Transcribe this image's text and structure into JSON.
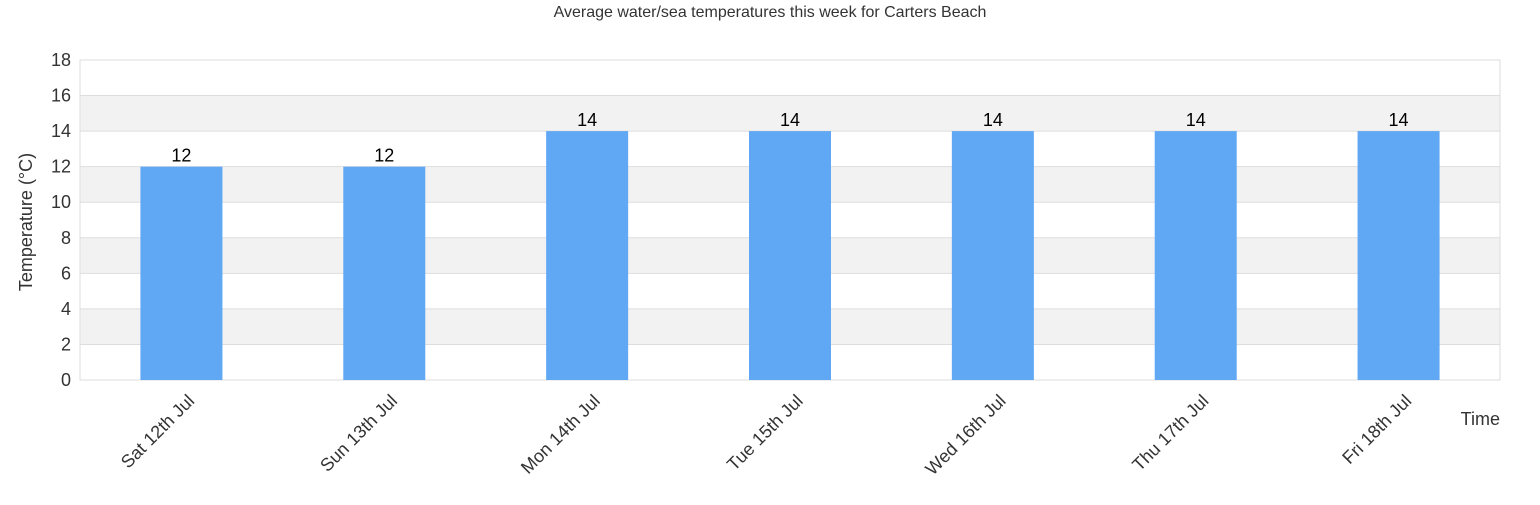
{
  "chart_data": {
    "type": "bar",
    "title": "Average water/sea temperatures this week for Carters Beach",
    "xlabel": "Time",
    "ylabel": "Temperature (°C)",
    "categories": [
      "Sat 12th Jul",
      "Sun 13th Jul",
      "Mon 14th Jul",
      "Tue 15th Jul",
      "Wed 16th Jul",
      "Thu 17th Jul",
      "Fri 18th Jul"
    ],
    "values": [
      12,
      12,
      14,
      14,
      14,
      14,
      14
    ],
    "ylim": [
      0,
      18
    ],
    "yticks": [
      0,
      2,
      4,
      6,
      8,
      10,
      12,
      14,
      16,
      18
    ],
    "data_labels": true,
    "grid": true,
    "bar_color": "#60a7f4"
  }
}
